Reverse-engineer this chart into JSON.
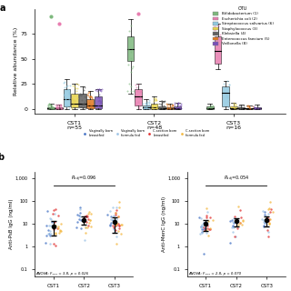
{
  "panel_a": {
    "cst_labels": [
      "CST1\nn=55",
      "CST2\nn=48",
      "CST3\nn=16"
    ],
    "otu_names": [
      "Bifidobacterium (1)",
      "Escherichia coli (2)",
      "Streptococcus salivarius (6)",
      "Staphylococcus (3)",
      "Klebsiella (4)",
      "Enterococcus faecium (5)",
      "Veillonella (8)"
    ],
    "otu_colors": [
      "#7db87d",
      "#e87db0",
      "#90c8e0",
      "#e8d44d",
      "#606060",
      "#e07820",
      "#7850b8"
    ],
    "ylabel": "Relative abundance (%)",
    "yticks": [
      0,
      25,
      50,
      75
    ],
    "cst1_boxes": {
      "bifidobacterium": {
        "q1": 0,
        "median": 0.5,
        "q3": 1.5,
        "whisker_low": 0,
        "whisker_high": 5
      },
      "ecoli": {
        "q1": 0,
        "median": 0.2,
        "q3": 1,
        "whisker_low": 0,
        "whisker_high": 4
      },
      "strep": {
        "q1": 2,
        "median": 10,
        "q3": 20,
        "whisker_low": 0,
        "whisker_high": 30
      },
      "staph": {
        "q1": 1,
        "median": 5,
        "q3": 15,
        "whisker_low": 0,
        "whisker_high": 25
      },
      "klebs": {
        "q1": 1,
        "median": 5,
        "q3": 15,
        "whisker_low": 0,
        "whisker_high": 22
      },
      "entero": {
        "q1": 0.5,
        "median": 3,
        "q3": 10,
        "whisker_low": 0,
        "whisker_high": 18
      },
      "veillo": {
        "q1": 0.5,
        "median": 3,
        "q3": 12,
        "whisker_low": 0,
        "whisker_high": 20
      }
    },
    "cst2_boxes": {
      "bifidobacterium": {
        "q1": 48,
        "median": 60,
        "q3": 72,
        "whisker_low": 15,
        "whisker_high": 90
      },
      "ecoli": {
        "q1": 3,
        "median": 12,
        "q3": 20,
        "whisker_low": 0,
        "whisker_high": 25
      },
      "strep": {
        "q1": 0,
        "median": 1,
        "q3": 3,
        "whisker_low": 0,
        "whisker_high": 10
      },
      "staph": {
        "q1": 0,
        "median": 1,
        "q3": 5,
        "whisker_low": 0,
        "whisker_high": 12
      },
      "klebs": {
        "q1": 0,
        "median": 0.5,
        "q3": 2,
        "whisker_low": 0,
        "whisker_high": 8
      },
      "entero": {
        "q1": 0,
        "median": 0.3,
        "q3": 1,
        "whisker_low": 0,
        "whisker_high": 5
      },
      "veillo": {
        "q1": 0,
        "median": 0.5,
        "q3": 2,
        "whisker_low": 0,
        "whisker_high": 6
      }
    },
    "cst3_boxes": {
      "bifidobacterium": {
        "q1": 0,
        "median": 0.5,
        "q3": 2,
        "whisker_low": 0,
        "whisker_high": 5
      },
      "ecoli": {
        "q1": 45,
        "median": 58,
        "q3": 72,
        "whisker_low": 40,
        "whisker_high": 85
      },
      "strep": {
        "q1": 2,
        "median": 16,
        "q3": 22,
        "whisker_low": 0,
        "whisker_high": 28
      },
      "staph": {
        "q1": 0,
        "median": 0.5,
        "q3": 2,
        "whisker_low": 0,
        "whisker_high": 6
      },
      "klebs": {
        "q1": 0,
        "median": 0.3,
        "q3": 1,
        "whisker_low": 0,
        "whisker_high": 4
      },
      "entero": {
        "q1": 0,
        "median": 0.2,
        "q3": 0.8,
        "whisker_low": 0,
        "whisker_high": 3
      },
      "veillo": {
        "q1": 0,
        "median": 0.3,
        "q3": 1,
        "whisker_low": 0,
        "whisker_high": 4
      }
    }
  },
  "panel_b": {
    "legend_labels": [
      "Vaginally born\nbreastfed",
      "Vaginally born\nformula fed",
      "C-section born\nbreastfed",
      "C-section born\nformula fed"
    ],
    "legend_colors": [
      "#4472c4",
      "#9dc3e6",
      "#e03030",
      "#f4b942"
    ],
    "left_ylabel": "Anti-PsB IgG (ng/ml)",
    "right_ylabel": "Anti-MenC IgG (ng/ml)",
    "left_padj": "P_adj=0.096",
    "right_padj": "P_adj=0.054",
    "left_anova": "ANOVA: F₂,₆₀ = 3.8, p = 0.026",
    "right_anova": "ANOVA: F₂,₆₀ = 2.8, p = 0.070",
    "yticks_log": [
      0.1,
      1,
      10,
      100,
      1000
    ],
    "cst_xlabels": [
      "CST1",
      "CST2",
      "CST3"
    ]
  },
  "title_a": "a",
  "title_b": "b",
  "bg_color": "#ffffff",
  "legend_title": "OTU"
}
